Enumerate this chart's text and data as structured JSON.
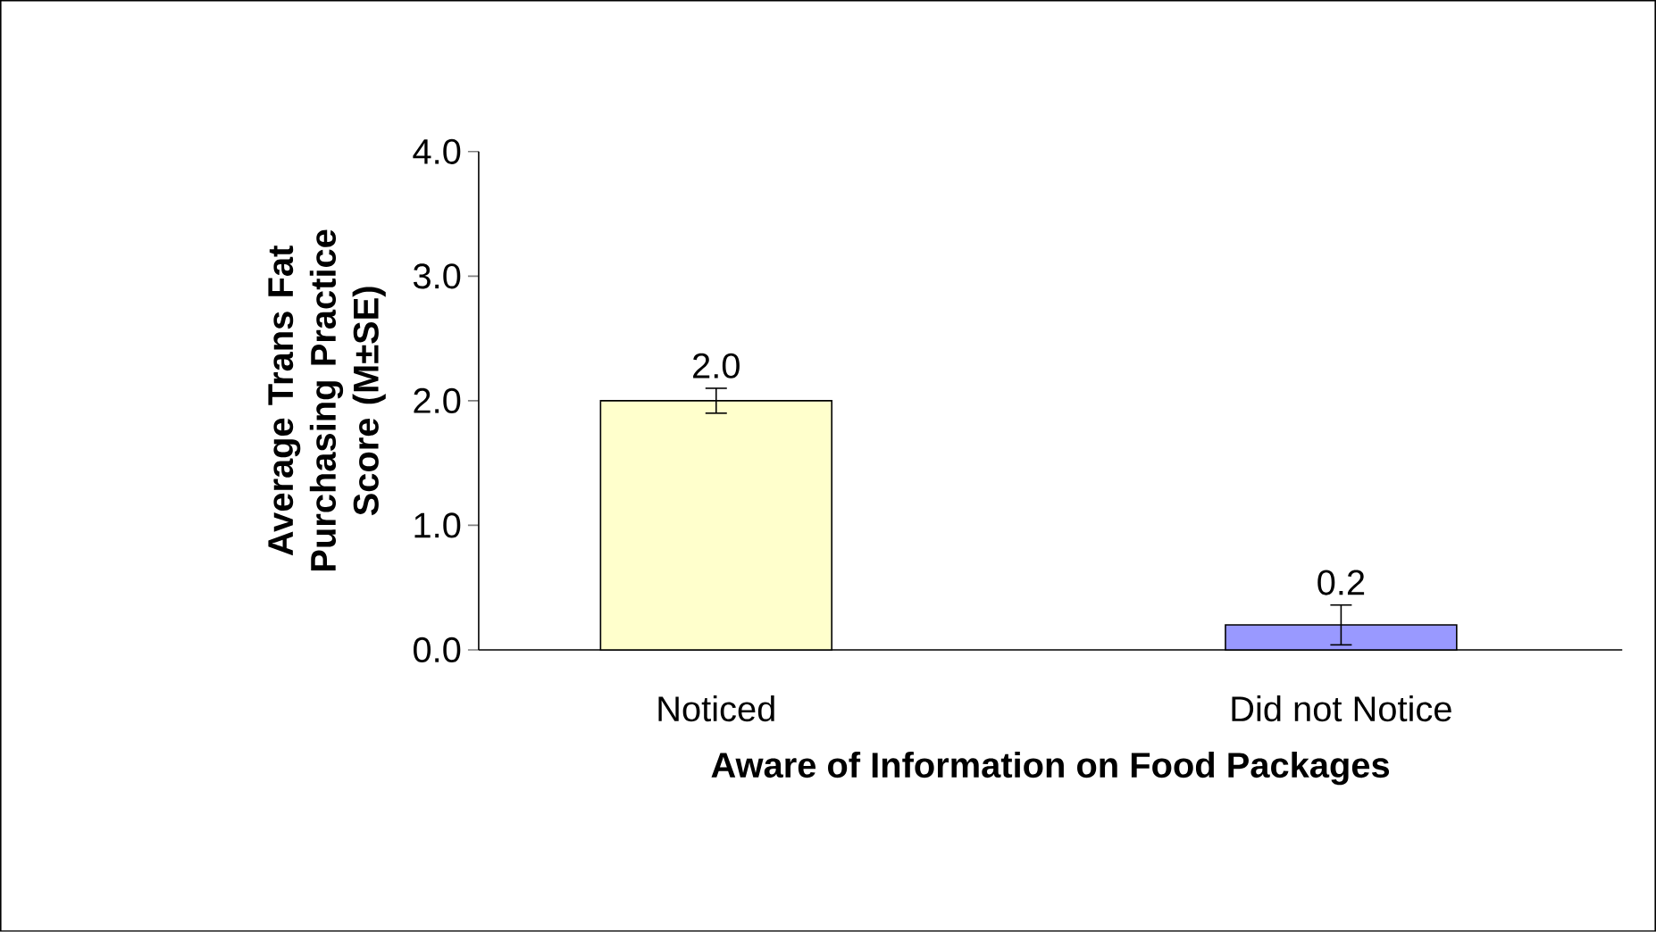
{
  "chart_data": {
    "type": "bar",
    "xlabel": "Aware of Information on Food Packages",
    "ylabel": "Average Trans Fat Purchasing Practice Score (M±SE)",
    "categories": [
      "Noticed",
      "Did not Notice"
    ],
    "values": [
      2.0,
      0.2
    ],
    "colors": [
      "#ffffcc",
      "#9999ff"
    ],
    "errors": [
      0.1,
      0.16
    ],
    "value_labels": [
      "2.0",
      "0.2"
    ],
    "ylim": [
      0,
      4
    ],
    "yticks": [
      {
        "value": 0,
        "label": "0.0"
      },
      {
        "value": 1,
        "label": "1.0"
      },
      {
        "value": 2,
        "label": "2.0"
      },
      {
        "value": 3,
        "label": "3.0"
      },
      {
        "value": 4,
        "label": "4.0"
      }
    ]
  }
}
